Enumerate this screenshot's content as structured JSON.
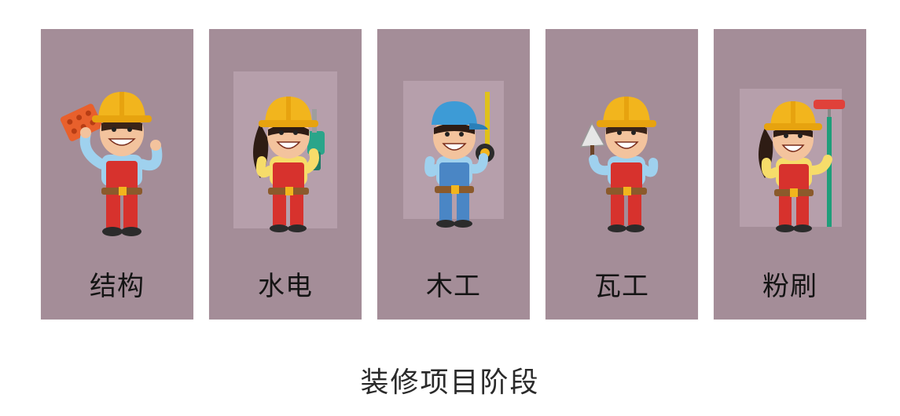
{
  "stages": [
    {
      "label": "结构",
      "figure": "bricklayer-worker-icon",
      "helmet": "#f2b51d"
    },
    {
      "label": "水电",
      "figure": "electrician-worker-icon",
      "helmet": "#f2b51d"
    },
    {
      "label": "木工",
      "figure": "carpenter-worker-icon",
      "helmet": "#3d9bd6"
    },
    {
      "label": "瓦工",
      "figure": "tiler-worker-icon",
      "helmet": "#f2b51d"
    },
    {
      "label": "粉刷",
      "figure": "painter-worker-icon",
      "helmet": "#f2b51d"
    }
  ],
  "caption": "装修项目阶段",
  "colors": {
    "card": "#a48d98",
    "background": "#ffffff"
  }
}
